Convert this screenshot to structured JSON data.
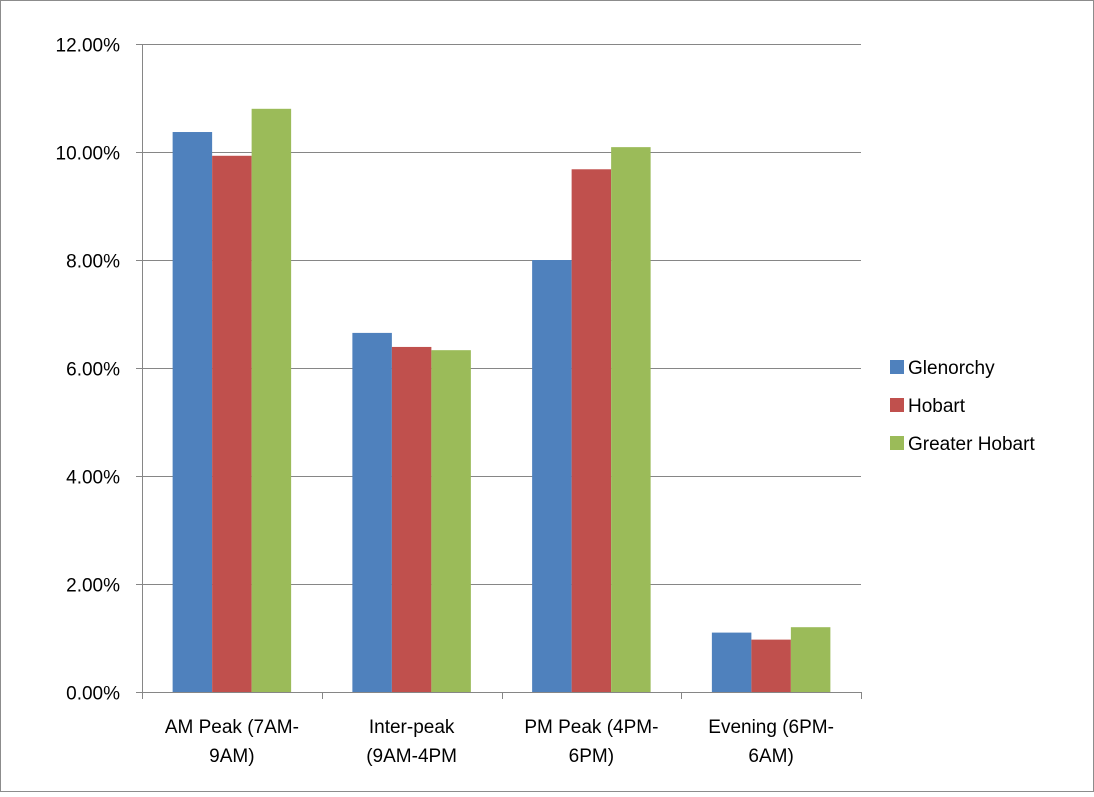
{
  "chart_data": {
    "type": "bar",
    "categories": [
      [
        "AM Peak (7AM-",
        "9AM)"
      ],
      [
        "Inter-peak",
        "(9AM-4PM"
      ],
      [
        "PM Peak (4PM-",
        "6PM)"
      ],
      [
        "Evening (6PM-",
        "6AM)"
      ]
    ],
    "series": [
      {
        "name": "Glenorchy",
        "color": "#4F81BD",
        "values": [
          10.37,
          6.65,
          8.0,
          1.1
        ]
      },
      {
        "name": "Hobart",
        "color": "#C0504D",
        "values": [
          9.93,
          6.39,
          9.68,
          0.97
        ]
      },
      {
        "name": "Greater Hobart",
        "color": "#9BBB59",
        "values": [
          10.8,
          6.33,
          10.09,
          1.2
        ]
      }
    ],
    "ylim": [
      0,
      12
    ],
    "yticks": [
      "0.00%",
      "2.00%",
      "4.00%",
      "6.00%",
      "8.00%",
      "10.00%",
      "12.00%"
    ],
    "grid": true,
    "legend_position": "right"
  }
}
